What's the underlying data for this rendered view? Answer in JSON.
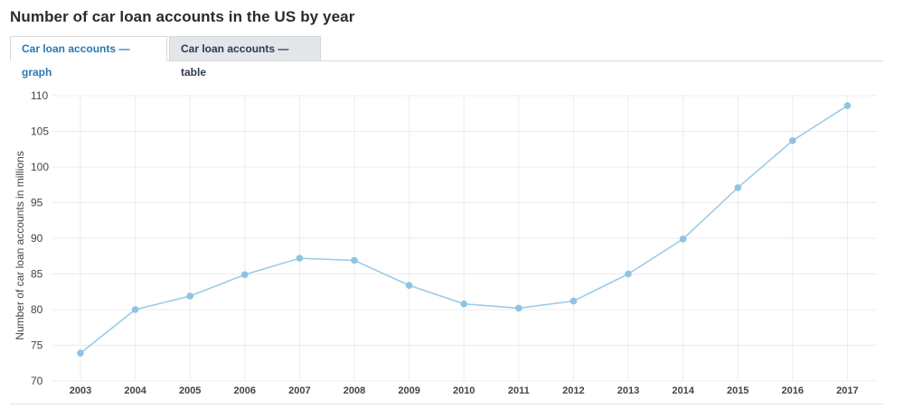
{
  "title": "Number of car loan accounts in the US by year",
  "tabs": [
    {
      "label": "Car loan accounts — graph",
      "active": true
    },
    {
      "label": "Car loan accounts — table",
      "active": false
    }
  ],
  "colors": {
    "line": "#9ccbe8",
    "point": "#8fc3e6",
    "grid": "#ececec",
    "active_tab": "#2a7ab0"
  },
  "chart_data": {
    "type": "line",
    "title": "Number of car loan accounts in the US by year",
    "xlabel": "",
    "ylabel": "Number of car loan accounts in millions",
    "ylim": [
      70,
      110
    ],
    "yticks": [
      70,
      75,
      80,
      85,
      90,
      95,
      100,
      105,
      110
    ],
    "categories": [
      "2003",
      "2004",
      "2005",
      "2006",
      "2007",
      "2008",
      "2009",
      "2010",
      "2011",
      "2012",
      "2013",
      "2014",
      "2015",
      "2016",
      "2017"
    ],
    "series": [
      {
        "values": [
          73.9,
          80.0,
          81.9,
          84.9,
          87.2,
          86.9,
          83.4,
          80.8,
          80.2,
          81.2,
          85.0,
          89.9,
          97.1,
          103.7,
          108.6
        ]
      }
    ],
    "grid": true
  }
}
